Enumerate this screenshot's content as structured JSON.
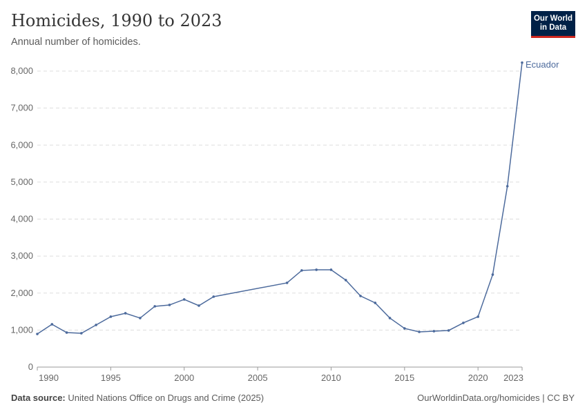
{
  "header": {
    "title": "Homicides, 1990 to 2023",
    "subtitle": "Annual number of homicides.",
    "logo_line1": "Our World",
    "logo_line2": "in Data"
  },
  "footer": {
    "source_label": "Data source:",
    "source_text": "United Nations Office on Drugs and Crime (2025)",
    "link": "OurWorldinData.org/homicides | CC BY"
  },
  "chart_data": {
    "type": "line",
    "title": "Homicides, 1990 to 2023",
    "subtitle": "Annual number of homicides.",
    "xlim": [
      1990,
      2023
    ],
    "ylim": [
      0,
      8000
    ],
    "x_ticks": [
      "1990",
      "1995",
      "2000",
      "2005",
      "2010",
      "2015",
      "2020",
      "2023"
    ],
    "y_ticks": [
      "0",
      "1,000",
      "2,000",
      "3,000",
      "4,000",
      "5,000",
      "6,000",
      "7,000",
      "8,000"
    ],
    "grid": "horizontal dashed",
    "series": [
      {
        "name": "Ecuador",
        "color": "#4c6a9c",
        "x": [
          1990,
          1991,
          1992,
          1993,
          1994,
          1995,
          1996,
          1997,
          1998,
          1999,
          2000,
          2001,
          2002,
          2007,
          2008,
          2009,
          2010,
          2011,
          2012,
          2013,
          2014,
          2015,
          2016,
          2017,
          2018,
          2019,
          2020,
          2021,
          2022,
          2023
        ],
        "y": [
          895,
          1157,
          933,
          914,
          1138,
          1362,
          1455,
          1325,
          1642,
          1679,
          1828,
          1660,
          1903,
          2276,
          2612,
          2630,
          2630,
          2350,
          1922,
          1735,
          1325,
          1045,
          951,
          970,
          989,
          1194,
          1362,
          2500,
          4888,
          8228
        ]
      }
    ]
  }
}
